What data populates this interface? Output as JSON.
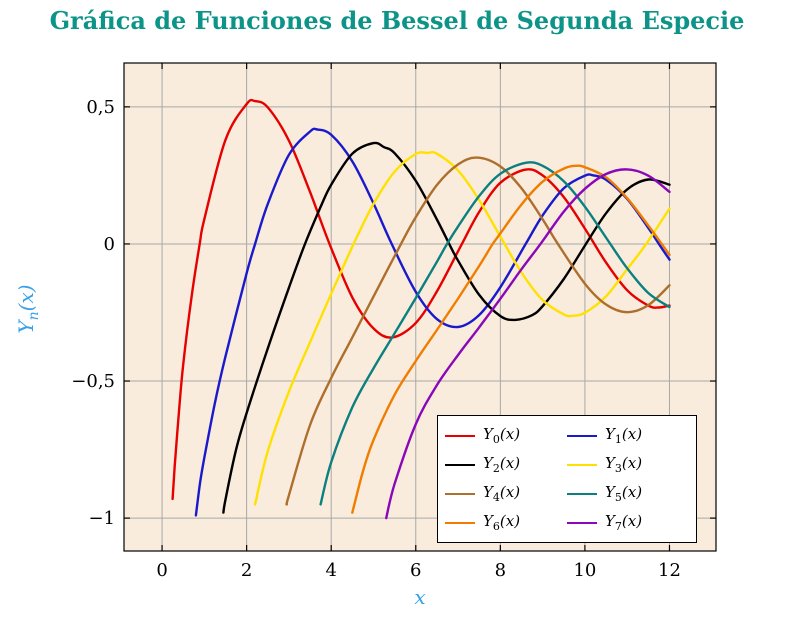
{
  "title": "Gráfica de Funciones de Bessel de Segunda Especie",
  "colors": {
    "title": "#0d9488",
    "axis_label": "#3aa0e8",
    "plot_bg": "#f9ecdc",
    "grid": "#a8a8a8",
    "axis": "#000000",
    "legend_bg": "#ffffff",
    "legend_border": "#000000"
  },
  "chart_data": {
    "type": "line",
    "title": "Gráfica de Funciones de Bessel de Segunda Especie",
    "xlabel": "x",
    "ylabel": "Y_n(x)",
    "xlim": [
      -0.9,
      13.1
    ],
    "ylim": [
      -1.12,
      0.66
    ],
    "grid": true,
    "x_ticks": [
      0,
      2,
      4,
      6,
      8,
      10,
      12
    ],
    "x_tick_labels": [
      "0",
      "2",
      "4",
      "6",
      "8",
      "10",
      "12"
    ],
    "y_ticks": [
      0.5,
      0,
      -0.5,
      -1
    ],
    "y_tick_labels": [
      "0,5",
      "0",
      "−0,5",
      "−1"
    ],
    "legend": {
      "position": "lower right",
      "columns": 2
    },
    "series": [
      {
        "name": "Y_0(x)",
        "color": "#e60000",
        "points": [
          [
            0.25,
            -0.93
          ],
          [
            0.3,
            -0.81
          ],
          [
            0.4,
            -0.61
          ],
          [
            0.5,
            -0.44
          ],
          [
            0.7,
            -0.19
          ],
          [
            0.89,
            0
          ],
          [
            1,
            0.09
          ],
          [
            1.5,
            0.38
          ],
          [
            2,
            0.51
          ],
          [
            2.2,
            0.521
          ],
          [
            2.5,
            0.498
          ],
          [
            3,
            0.377
          ],
          [
            3.5,
            0.189
          ],
          [
            3.96,
            0
          ],
          [
            4.5,
            -0.195
          ],
          [
            5,
            -0.308
          ],
          [
            5.45,
            -0.341
          ],
          [
            6,
            -0.288
          ],
          [
            6.5,
            -0.173
          ],
          [
            7.09,
            0
          ],
          [
            7.5,
            0.117
          ],
          [
            8,
            0.223
          ],
          [
            8.6,
            0.271
          ],
          [
            9,
            0.25
          ],
          [
            9.5,
            0.171
          ],
          [
            10,
            0.056
          ],
          [
            10.5,
            -0.068
          ],
          [
            11,
            -0.169
          ],
          [
            11.5,
            -0.225
          ],
          [
            11.75,
            -0.232
          ],
          [
            12,
            -0.225
          ]
        ]
      },
      {
        "name": "Y_1(x)",
        "color": "#1a1acc",
        "points": [
          [
            0.8,
            -0.99
          ],
          [
            0.9,
            -0.87
          ],
          [
            1,
            -0.78
          ],
          [
            1.25,
            -0.58
          ],
          [
            1.5,
            -0.41
          ],
          [
            2,
            -0.107
          ],
          [
            2.2,
            0
          ],
          [
            2.5,
            0.146
          ],
          [
            3,
            0.325
          ],
          [
            3.5,
            0.41
          ],
          [
            3.68,
            0.417
          ],
          [
            4,
            0.398
          ],
          [
            4.5,
            0.301
          ],
          [
            5,
            0.148
          ],
          [
            5.43,
            0
          ],
          [
            6,
            -0.175
          ],
          [
            6.5,
            -0.274
          ],
          [
            7,
            -0.303
          ],
          [
            7.5,
            -0.259
          ],
          [
            8,
            -0.158
          ],
          [
            8.6,
            0
          ],
          [
            9,
            0.104
          ],
          [
            9.5,
            0.203
          ],
          [
            10,
            0.249
          ],
          [
            10.2,
            0.25
          ],
          [
            10.5,
            0.234
          ],
          [
            11,
            0.164
          ],
          [
            11.5,
            0.058
          ],
          [
            11.75,
            0
          ],
          [
            12,
            -0.057
          ]
        ]
      },
      {
        "name": "Y_2(x)",
        "color": "#000000",
        "points": [
          [
            1.45,
            -0.98
          ],
          [
            1.5,
            -0.932
          ],
          [
            1.75,
            -0.75
          ],
          [
            2,
            -0.617
          ],
          [
            2.5,
            -0.381
          ],
          [
            3,
            -0.16
          ],
          [
            3.38,
            0
          ],
          [
            3.75,
            0.135
          ],
          [
            4,
            0.216
          ],
          [
            4.5,
            0.329
          ],
          [
            5,
            0.368
          ],
          [
            5.25,
            0.353
          ],
          [
            5.5,
            0.331
          ],
          [
            6,
            0.23
          ],
          [
            6.5,
            0.089
          ],
          [
            6.79,
            0
          ],
          [
            7,
            -0.061
          ],
          [
            7.5,
            -0.186
          ],
          [
            8,
            -0.263
          ],
          [
            8.35,
            -0.277
          ],
          [
            8.75,
            -0.26
          ],
          [
            9,
            -0.227
          ],
          [
            9.5,
            -0.128
          ],
          [
            10,
            -0.006
          ],
          [
            10.5,
            0.112
          ],
          [
            11,
            0.199
          ],
          [
            11.5,
            0.235
          ],
          [
            12,
            0.216
          ]
        ]
      },
      {
        "name": "Y_3(x)",
        "color": "#ffe100",
        "points": [
          [
            2.2,
            -0.95
          ],
          [
            2.5,
            -0.756
          ],
          [
            3,
            -0.539
          ],
          [
            3.5,
            -0.358
          ],
          [
            4,
            -0.182
          ],
          [
            4.53,
            0
          ],
          [
            5,
            0.146
          ],
          [
            5.5,
            0.264
          ],
          [
            6,
            0.328
          ],
          [
            6.27,
            0.332
          ],
          [
            6.5,
            0.329
          ],
          [
            7,
            0.268
          ],
          [
            7.5,
            0.16
          ],
          [
            8,
            0.027
          ],
          [
            8.5,
            -0.104
          ],
          [
            9,
            -0.205
          ],
          [
            9.5,
            -0.257
          ],
          [
            9.7,
            -0.262
          ],
          [
            10,
            -0.251
          ],
          [
            10.5,
            -0.191
          ],
          [
            11,
            -0.092
          ],
          [
            11.45,
            0
          ],
          [
            12,
            0.129
          ]
        ]
      },
      {
        "name": "Y_4(x)",
        "color": "#ae6f2d",
        "points": [
          [
            2.95,
            -0.95
          ],
          [
            3,
            -0.917
          ],
          [
            3.5,
            -0.66
          ],
          [
            4,
            -0.489
          ],
          [
            4.5,
            -0.341
          ],
          [
            5,
            -0.192
          ],
          [
            5.65,
            0
          ],
          [
            6,
            0.098
          ],
          [
            6.5,
            0.215
          ],
          [
            7,
            0.29
          ],
          [
            7.45,
            0.315
          ],
          [
            8,
            0.283
          ],
          [
            8.5,
            0.203
          ],
          [
            9,
            0.09
          ],
          [
            9.36,
            0
          ],
          [
            10,
            -0.145
          ],
          [
            10.5,
            -0.221
          ],
          [
            11,
            -0.249
          ],
          [
            11.5,
            -0.223
          ],
          [
            12,
            -0.151
          ]
        ]
      },
      {
        "name": "Y_5(x)",
        "color": "#0c7f80",
        "points": [
          [
            3.75,
            -0.95
          ],
          [
            4,
            -0.796
          ],
          [
            4.5,
            -0.596
          ],
          [
            5,
            -0.454
          ],
          [
            5.5,
            -0.326
          ],
          [
            6,
            -0.197
          ],
          [
            6.5,
            -0.065
          ],
          [
            6.74,
            0
          ],
          [
            7,
            0.064
          ],
          [
            7.5,
            0.175
          ],
          [
            8,
            0.256
          ],
          [
            8.6,
            0.296
          ],
          [
            9,
            0.285
          ],
          [
            9.5,
            0.229
          ],
          [
            10,
            0.136
          ],
          [
            10.6,
            0
          ],
          [
            11,
            -0.089
          ],
          [
            11.5,
            -0.179
          ],
          [
            12,
            -0.23
          ]
        ]
      },
      {
        "name": "Y_6(x)",
        "color": "#f07d00",
        "points": [
          [
            4.5,
            -0.98
          ],
          [
            4.75,
            -0.83
          ],
          [
            5,
            -0.715
          ],
          [
            5.5,
            -0.55
          ],
          [
            6,
            -0.427
          ],
          [
            6.5,
            -0.314
          ],
          [
            7,
            -0.199
          ],
          [
            7.5,
            -0.08
          ],
          [
            7.82,
            0
          ],
          [
            8,
            0.038
          ],
          [
            8.5,
            0.144
          ],
          [
            9,
            0.227
          ],
          [
            9.5,
            0.275
          ],
          [
            9.8,
            0.285
          ],
          [
            10,
            0.28
          ],
          [
            10.5,
            0.243
          ],
          [
            11,
            0.167
          ],
          [
            11.5,
            0.067
          ],
          [
            12,
            -0.04
          ]
        ]
      },
      {
        "name": "Y_7(x)",
        "color": "#8a08b8",
        "points": [
          [
            5.3,
            -1.0
          ],
          [
            5.5,
            -0.875
          ],
          [
            6,
            -0.657
          ],
          [
            6.5,
            -0.515
          ],
          [
            7,
            -0.405
          ],
          [
            7.5,
            -0.304
          ],
          [
            8,
            -0.2
          ],
          [
            8.5,
            -0.092
          ],
          [
            8.95,
            0
          ],
          [
            9.5,
            0.118
          ],
          [
            10,
            0.201
          ],
          [
            10.5,
            0.255
          ],
          [
            11,
            0.272
          ],
          [
            11.5,
            0.249
          ],
          [
            12,
            0.19
          ]
        ]
      }
    ]
  }
}
